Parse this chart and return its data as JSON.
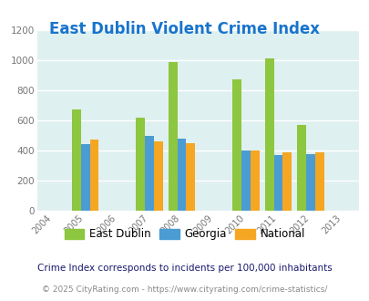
{
  "title": "East Dublin Violent Crime Index",
  "all_years": [
    2004,
    2005,
    2006,
    2007,
    2008,
    2009,
    2010,
    2011,
    2012,
    2013
  ],
  "data_years": [
    2005,
    2007,
    2008,
    2010,
    2011,
    2012
  ],
  "east_dublin": [
    670,
    620,
    985,
    870,
    1010,
    570
  ],
  "georgia": [
    445,
    495,
    480,
    400,
    370,
    375
  ],
  "national": [
    470,
    460,
    450,
    400,
    390,
    390
  ],
  "color_east_dublin": "#8DC63F",
  "color_georgia": "#4B9CD3",
  "color_national": "#F5A623",
  "bg_color": "#DFF0F0",
  "title_color": "#1874CD",
  "ylim": [
    0,
    1200
  ],
  "yticks": [
    0,
    200,
    400,
    600,
    800,
    1000,
    1200
  ],
  "footnote1": "Crime Index corresponds to incidents per 100,000 inhabitants",
  "footnote2": "© 2025 CityRating.com - https://www.cityrating.com/crime-statistics/",
  "legend_labels": [
    "East Dublin",
    "Georgia",
    "National"
  ],
  "bar_width": 0.28,
  "footnote1_color": "#1a1a6e",
  "footnote2_color": "#888888"
}
